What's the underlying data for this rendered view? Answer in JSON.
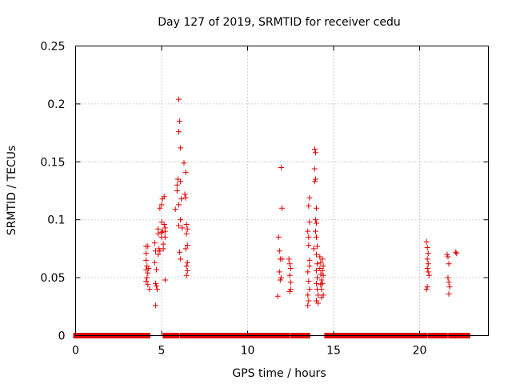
{
  "chart_data": {
    "type": "scatter",
    "title": "Day 127 of 2019, SRMTID for receiver cedu",
    "xlabel": "GPS time / hours",
    "ylabel": "SRMTID / TECUs",
    "xlim": [
      0,
      24
    ],
    "ylim": [
      0,
      0.25
    ],
    "x_ticks": [
      0,
      5,
      10,
      15,
      20
    ],
    "x_tick_labels": [
      "0",
      "5",
      "10",
      "15",
      "20"
    ],
    "y_ticks": [
      0,
      0.05,
      0.1,
      0.15,
      0.2,
      0.25
    ],
    "y_tick_labels": [
      "0",
      "0.05",
      "0.1",
      "0.15",
      "0.2",
      "0.25"
    ],
    "grid": true,
    "marker": "+",
    "series_color": "#e00000",
    "zero_baseline_segments": [
      [
        0.0,
        4.2
      ],
      [
        5.2,
        5.9
      ],
      [
        6.2,
        6.5
      ],
      [
        6.7,
        8.4
      ],
      [
        8.6,
        11.9
      ],
      [
        12.1,
        12.3
      ],
      [
        12.6,
        13.5
      ],
      [
        14.6,
        20.3
      ],
      [
        20.6,
        21.5
      ],
      [
        21.8,
        22.8
      ]
    ],
    "points": [
      [
        4.1,
        0.077
      ],
      [
        4.1,
        0.071
      ],
      [
        4.1,
        0.065
      ],
      [
        4.15,
        0.06
      ],
      [
        4.1,
        0.057
      ],
      [
        4.2,
        0.054
      ],
      [
        4.15,
        0.05
      ],
      [
        4.1,
        0.047
      ],
      [
        4.2,
        0.044
      ],
      [
        4.25,
        0.058
      ],
      [
        4.3,
        0.04
      ],
      [
        4.2,
        0.077
      ],
      [
        4.6,
        0.08
      ],
      [
        4.65,
        0.073
      ],
      [
        4.6,
        0.063
      ],
      [
        4.7,
        0.057
      ],
      [
        4.65,
        0.045
      ],
      [
        4.7,
        0.043
      ],
      [
        4.75,
        0.04
      ],
      [
        4.65,
        0.026
      ],
      [
        4.8,
        0.092
      ],
      [
        4.8,
        0.088
      ],
      [
        4.85,
        0.075
      ],
      [
        4.8,
        0.07
      ],
      [
        4.9,
        0.073
      ],
      [
        4.9,
        0.11
      ],
      [
        5.0,
        0.113
      ],
      [
        5.0,
        0.098
      ],
      [
        5.05,
        0.09
      ],
      [
        5.0,
        0.085
      ],
      [
        5.1,
        0.079
      ],
      [
        5.1,
        0.075
      ],
      [
        5.05,
        0.118
      ],
      [
        5.15,
        0.12
      ],
      [
        5.15,
        0.096
      ],
      [
        5.2,
        0.093
      ],
      [
        5.2,
        0.085
      ],
      [
        5.2,
        0.09
      ],
      [
        5.0,
        0.089
      ],
      [
        5.2,
        0.048
      ],
      [
        5.8,
        0.109
      ],
      [
        5.9,
        0.13
      ],
      [
        5.9,
        0.125
      ],
      [
        5.95,
        0.135
      ],
      [
        6.0,
        0.113
      ],
      [
        6.0,
        0.095
      ],
      [
        6.0,
        0.204
      ],
      [
        6.05,
        0.185
      ],
      [
        6.0,
        0.176
      ],
      [
        6.1,
        0.162
      ],
      [
        6.1,
        0.133
      ],
      [
        6.15,
        0.118
      ],
      [
        6.1,
        0.1
      ],
      [
        6.2,
        0.093
      ],
      [
        6.05,
        0.072
      ],
      [
        6.1,
        0.066
      ],
      [
        6.3,
        0.149
      ],
      [
        6.4,
        0.141
      ],
      [
        6.35,
        0.122
      ],
      [
        6.4,
        0.119
      ],
      [
        6.45,
        0.096
      ],
      [
        6.5,
        0.092
      ],
      [
        6.45,
        0.088
      ],
      [
        6.5,
        0.078
      ],
      [
        6.4,
        0.075
      ],
      [
        6.5,
        0.063
      ],
      [
        6.45,
        0.06
      ],
      [
        6.5,
        0.056
      ],
      [
        6.45,
        0.052
      ],
      [
        11.75,
        0.034
      ],
      [
        11.8,
        0.085
      ],
      [
        11.85,
        0.073
      ],
      [
        11.9,
        0.066
      ],
      [
        11.85,
        0.055
      ],
      [
        11.9,
        0.048
      ],
      [
        11.95,
        0.145
      ],
      [
        12.0,
        0.11
      ],
      [
        11.95,
        0.05
      ],
      [
        12.0,
        0.066
      ],
      [
        12.4,
        0.066
      ],
      [
        12.45,
        0.062
      ],
      [
        12.5,
        0.058
      ],
      [
        12.45,
        0.052
      ],
      [
        12.5,
        0.046
      ],
      [
        12.5,
        0.04
      ],
      [
        12.45,
        0.038
      ],
      [
        13.5,
        0.09
      ],
      [
        13.55,
        0.085
      ],
      [
        13.6,
        0.119
      ],
      [
        13.55,
        0.112
      ],
      [
        13.6,
        0.098
      ],
      [
        13.55,
        0.078
      ],
      [
        13.6,
        0.065
      ],
      [
        13.5,
        0.055
      ],
      [
        13.55,
        0.047
      ],
      [
        13.6,
        0.04
      ],
      [
        13.5,
        0.035
      ],
      [
        13.55,
        0.03
      ],
      [
        13.5,
        0.026
      ],
      [
        13.6,
        0.06
      ],
      [
        13.9,
        0.161
      ],
      [
        13.95,
        0.158
      ],
      [
        13.9,
        0.144
      ],
      [
        13.95,
        0.135
      ],
      [
        13.9,
        0.133
      ],
      [
        14.0,
        0.11
      ],
      [
        13.95,
        0.1
      ],
      [
        14.0,
        0.097
      ],
      [
        13.95,
        0.09
      ],
      [
        14.0,
        0.085
      ],
      [
        14.05,
        0.077
      ],
      [
        14.0,
        0.07
      ],
      [
        14.05,
        0.062
      ],
      [
        14.0,
        0.056
      ],
      [
        14.05,
        0.05
      ],
      [
        14.0,
        0.045
      ],
      [
        14.05,
        0.04
      ],
      [
        14.1,
        0.035
      ],
      [
        14.0,
        0.03
      ],
      [
        14.1,
        0.028
      ],
      [
        13.85,
        0.075
      ],
      [
        14.2,
        0.068
      ],
      [
        14.25,
        0.063
      ],
      [
        14.2,
        0.058
      ],
      [
        14.25,
        0.053
      ],
      [
        14.3,
        0.048
      ],
      [
        14.25,
        0.044
      ],
      [
        14.3,
        0.04
      ],
      [
        14.35,
        0.066
      ],
      [
        14.4,
        0.06
      ],
      [
        14.35,
        0.056
      ],
      [
        14.4,
        0.052
      ],
      [
        14.35,
        0.045
      ],
      [
        14.4,
        0.035
      ],
      [
        14.3,
        0.033
      ],
      [
        20.4,
        0.081
      ],
      [
        20.45,
        0.076
      ],
      [
        20.5,
        0.071
      ],
      [
        20.45,
        0.066
      ],
      [
        20.5,
        0.062
      ],
      [
        20.45,
        0.058
      ],
      [
        20.5,
        0.055
      ],
      [
        20.55,
        0.052
      ],
      [
        20.45,
        0.042
      ],
      [
        20.4,
        0.04
      ],
      [
        21.6,
        0.07
      ],
      [
        21.65,
        0.068
      ],
      [
        21.7,
        0.062
      ],
      [
        21.65,
        0.05
      ],
      [
        21.7,
        0.046
      ],
      [
        21.75,
        0.042
      ],
      [
        21.7,
        0.036
      ],
      [
        22.1,
        0.072
      ],
      [
        22.15,
        0.071
      ]
    ]
  }
}
